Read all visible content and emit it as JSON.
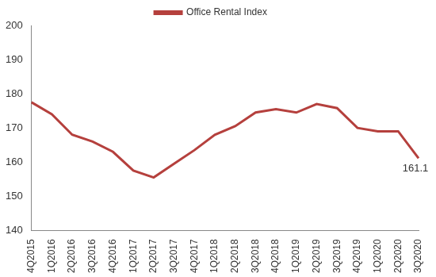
{
  "chart_data": {
    "type": "line",
    "categories": [
      "4Q2015",
      "1Q2016",
      "2Q2016",
      "3Q2016",
      "4Q2016",
      "1Q2017",
      "2Q2017",
      "3Q2017",
      "4Q2017",
      "1Q2018",
      "2Q2018",
      "3Q2018",
      "4Q2018",
      "1Q2019",
      "2Q2019",
      "3Q2019",
      "4Q2019",
      "1Q2020",
      "2Q2020",
      "3Q2020"
    ],
    "series": [
      {
        "name": "Office Rental Index",
        "color": "#b5403d",
        "values": [
          177.5,
          174,
          168,
          166,
          163,
          157.5,
          155.5,
          159.5,
          163.5,
          168,
          170.5,
          174.5,
          175.5,
          174.5,
          177,
          175.8,
          170,
          169,
          169,
          161.1
        ]
      }
    ],
    "ylim": [
      140,
      200
    ],
    "yticks": [
      140,
      150,
      160,
      170,
      180,
      190,
      200
    ],
    "grid": false,
    "legend": "top",
    "annotations": [
      {
        "x": "3Q2020",
        "y": 161.1,
        "label": "161.1"
      }
    ]
  }
}
